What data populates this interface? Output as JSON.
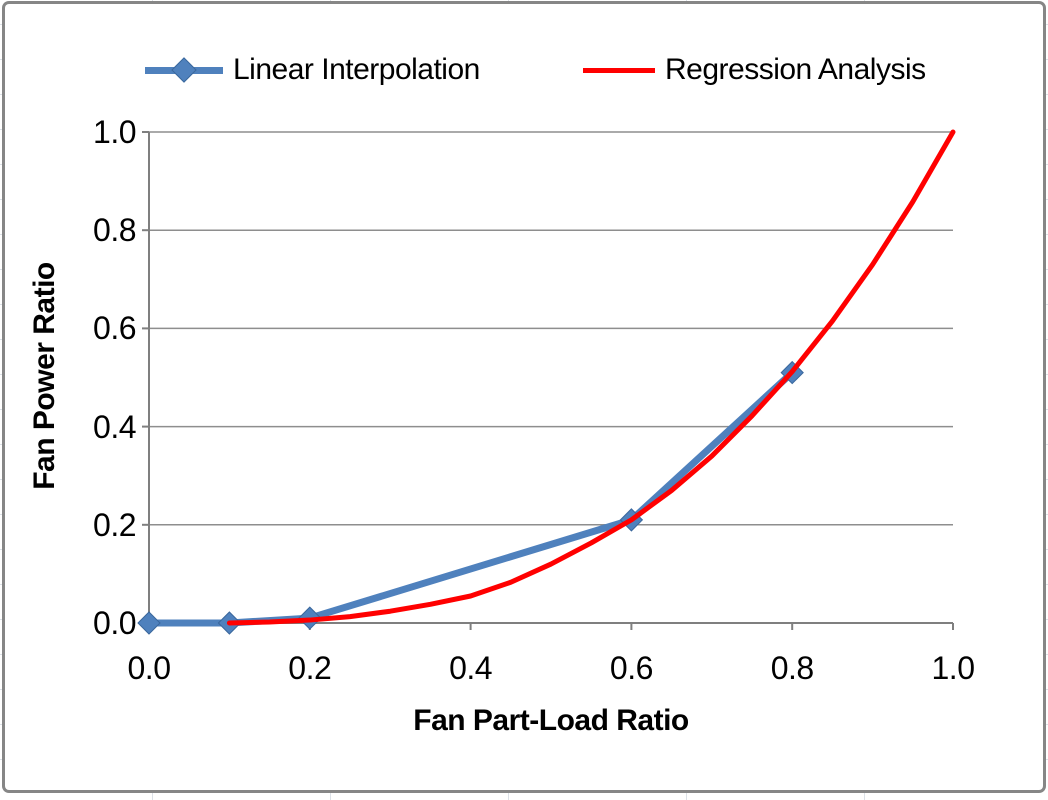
{
  "chart": {
    "legend": [
      {
        "label": "Linear Interpolation",
        "color": "#4F81BD",
        "marker": "diamond",
        "marker_edge": "#3A679C"
      },
      {
        "label": "Regression Analysis",
        "color": "#FF0000",
        "marker": "none"
      }
    ],
    "x_tick_labels": [
      "0.0",
      "0.2",
      "0.4",
      "0.6",
      "0.8",
      "1.0"
    ],
    "y_tick_labels": [
      "0.0",
      "0.2",
      "0.4",
      "0.6",
      "0.8",
      "1.0"
    ],
    "colors": {
      "axis": "#7F7F7F",
      "gridline": "#8E8E8E",
      "text": "#000000",
      "sheet_gridline": "#DCE1E7",
      "chart_border": "#868686"
    }
  },
  "chart_data": {
    "type": "line",
    "title": "",
    "xlabel": "Fan Part-Load Ratio",
    "ylabel": "Fan Power Ratio",
    "xlim": [
      0,
      1
    ],
    "ylim": [
      0,
      1
    ],
    "x_ticks": [
      0,
      0.2,
      0.4,
      0.6,
      0.8,
      1.0
    ],
    "y_ticks": [
      0,
      0.2,
      0.4,
      0.6,
      0.8,
      1.0
    ],
    "grid": "horizontal-only",
    "legend_position": "top",
    "series": [
      {
        "name": "Linear Interpolation",
        "color": "#4F81BD",
        "marker": "diamond",
        "marker_edge": "#3A679C",
        "marker_size": 22,
        "line_width": 7,
        "x": [
          0.0,
          0.1,
          0.2,
          0.6,
          0.8
        ],
        "y": [
          0.0,
          0.0,
          0.01,
          0.21,
          0.51
        ]
      },
      {
        "name": "Regression Analysis",
        "color": "#FF0000",
        "marker": "none",
        "line_width": 5,
        "x": [
          0.1,
          0.15,
          0.2,
          0.25,
          0.3,
          0.35,
          0.4,
          0.45,
          0.5,
          0.55,
          0.6,
          0.65,
          0.7,
          0.75,
          0.8,
          0.85,
          0.9,
          0.95,
          1.0
        ],
        "y": [
          0.0,
          0.002,
          0.006,
          0.013,
          0.024,
          0.038,
          0.055,
          0.083,
          0.12,
          0.163,
          0.21,
          0.27,
          0.34,
          0.422,
          0.512,
          0.615,
          0.73,
          0.858,
          1.0
        ]
      }
    ]
  }
}
